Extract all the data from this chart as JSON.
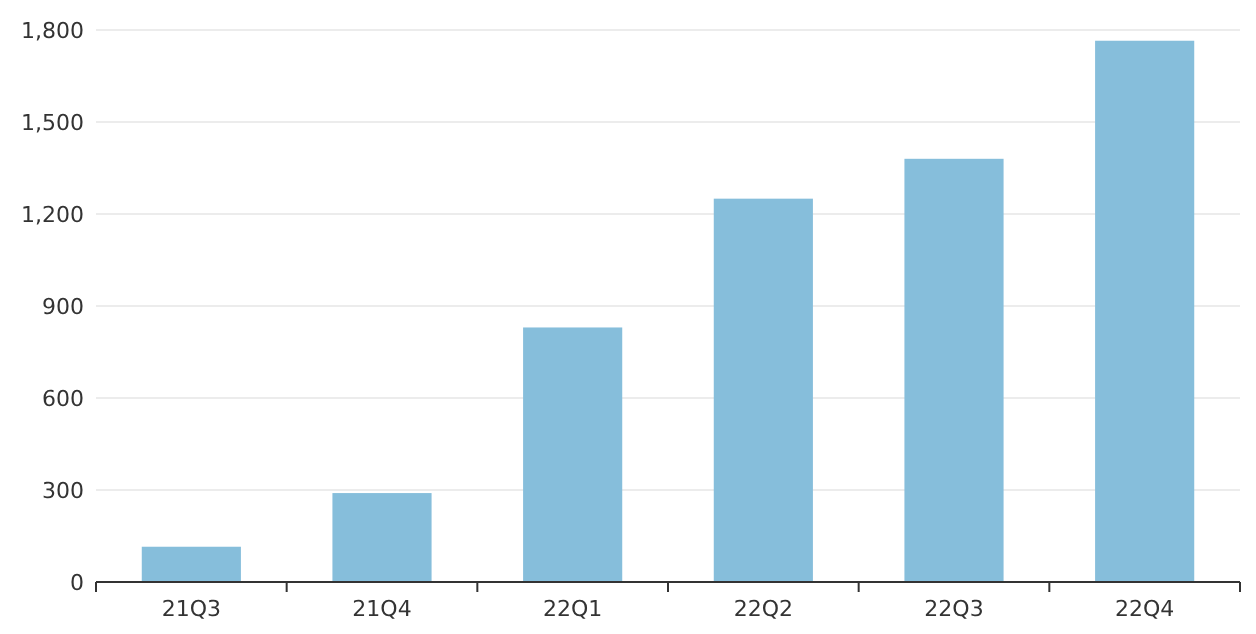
{
  "chart_data": {
    "type": "bar",
    "categories": [
      "21Q3",
      "21Q4",
      "22Q1",
      "22Q2",
      "22Q3",
      "22Q4"
    ],
    "values": [
      115,
      290,
      830,
      1250,
      1380,
      1765
    ],
    "color": "#86bedb",
    "ylim": [
      0,
      1800
    ],
    "yticks": [
      {
        "value": 0,
        "label": "0"
      },
      {
        "value": 300,
        "label": "300"
      },
      {
        "value": 600,
        "label": "600"
      },
      {
        "value": 900,
        "label": "900"
      },
      {
        "value": 1200,
        "label": "1,200"
      },
      {
        "value": 1500,
        "label": "1,500"
      },
      {
        "value": 1800,
        "label": "1,800"
      }
    ],
    "grid": "y"
  }
}
